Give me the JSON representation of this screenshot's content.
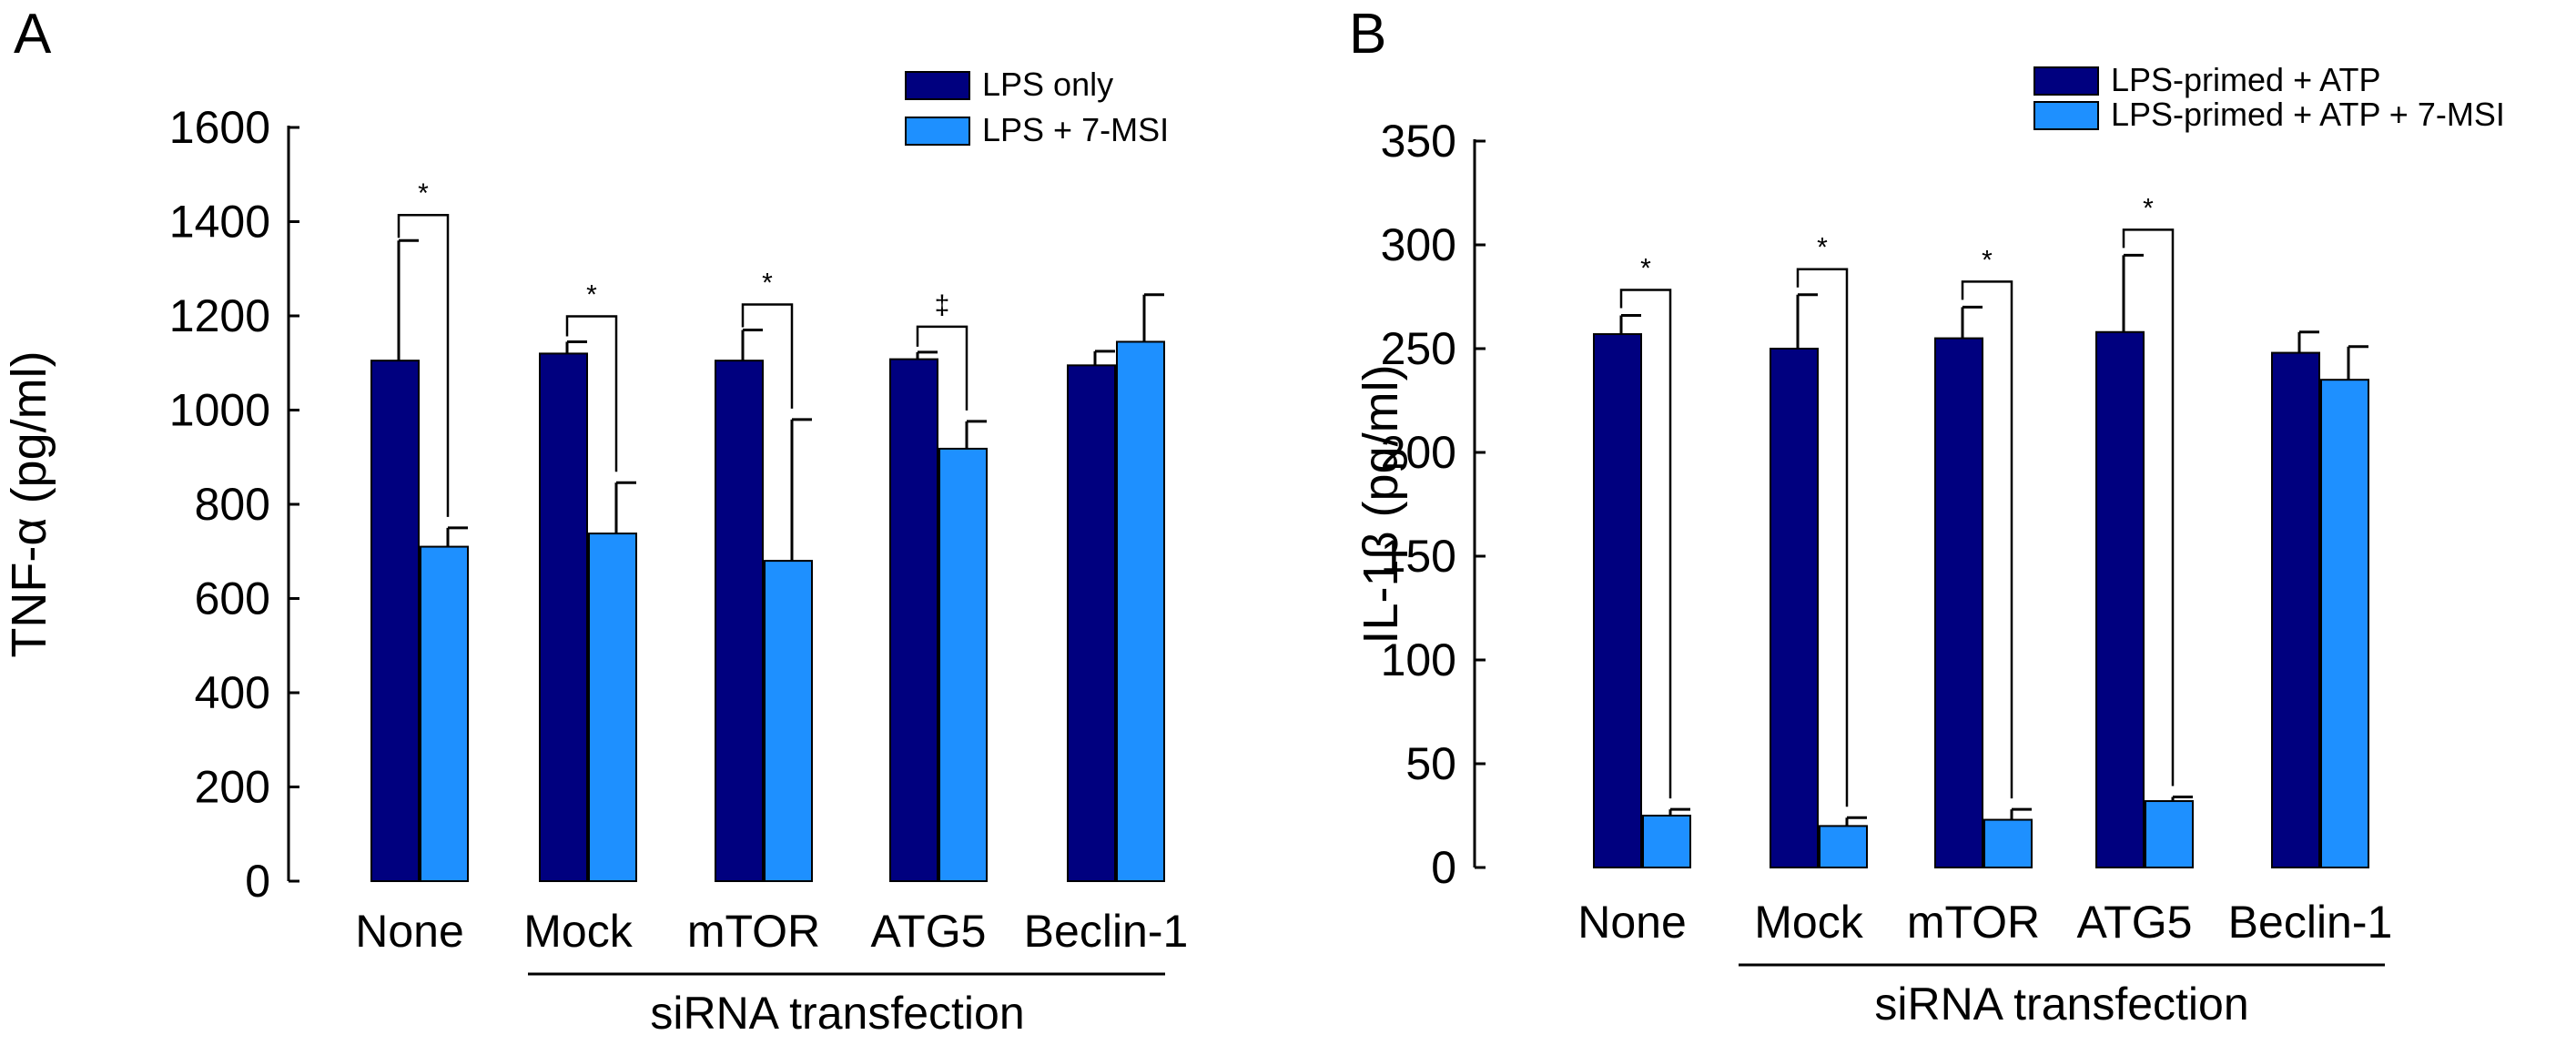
{
  "chart_data": [
    {
      "panel": "A",
      "type": "bar",
      "ylabel": "TNF-α (pg/ml)",
      "ylim": [
        0,
        1600
      ],
      "yticks": [
        0,
        200,
        400,
        600,
        800,
        1000,
        1200,
        1400,
        1600
      ],
      "categories": [
        "None",
        "Mock",
        "mTOR",
        "ATG5",
        "Beclin-1"
      ],
      "group_label": "siRNA transfection",
      "legend_position": "top-right",
      "series": [
        {
          "name": "LPS only",
          "color": "#00007f",
          "values": [
            1105,
            1120,
            1105,
            1108,
            1095
          ],
          "errors": [
            255,
            25,
            65,
            15,
            30
          ]
        },
        {
          "name": "LPS + 7-MSI",
          "color": "#1e90ff",
          "values": [
            710,
            738,
            680,
            918,
            1145
          ],
          "errors": [
            40,
            108,
            300,
            58,
            100
          ]
        }
      ],
      "significance": [
        {
          "category_index": 0,
          "symbol": "*"
        },
        {
          "category_index": 1,
          "symbol": "*"
        },
        {
          "category_index": 2,
          "symbol": "*"
        },
        {
          "category_index": 3,
          "symbol": "‡"
        }
      ]
    },
    {
      "panel": "B",
      "type": "bar",
      "ylabel": "IL-1β (pg/ml)",
      "ylim": [
        0,
        350
      ],
      "yticks": [
        0,
        50,
        100,
        150,
        200,
        250,
        300,
        350
      ],
      "categories": [
        "None",
        "Mock",
        "mTOR",
        "ATG5",
        "Beclin-1"
      ],
      "group_label": "siRNA transfection",
      "legend_position": "top-right",
      "series": [
        {
          "name": "LPS-primed + ATP",
          "color": "#00007f",
          "values": [
            257,
            250,
            255,
            258,
            248
          ],
          "errors": [
            9,
            26,
            15,
            37,
            10
          ]
        },
        {
          "name": "LPS-primed + ATP + 7-MSI",
          "color": "#1e90ff",
          "values": [
            25,
            20,
            23,
            32,
            235
          ],
          "errors": [
            3,
            4,
            5,
            2,
            16
          ]
        }
      ],
      "significance": [
        {
          "category_index": 0,
          "symbol": "*"
        },
        {
          "category_index": 1,
          "symbol": "*"
        },
        {
          "category_index": 2,
          "symbol": "*"
        },
        {
          "category_index": 3,
          "symbol": "*"
        }
      ]
    }
  ]
}
